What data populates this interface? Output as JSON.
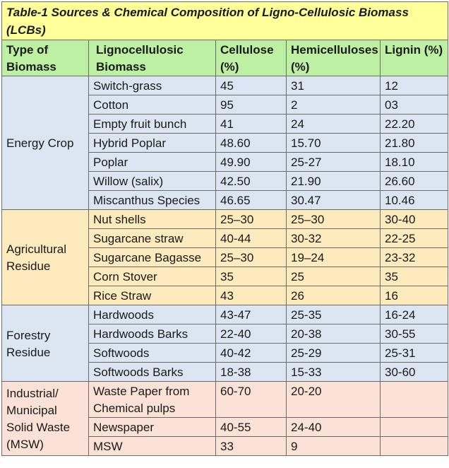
{
  "table": {
    "title": "Table-1 Sources & Chemical Composition of Ligno-Cellulosic Biomass (LCBs)",
    "headers": [
      "Type of Biomass",
      "Lignocellulosic Biomass",
      "Cellulose (%)",
      "Hemicelluloses (%)",
      "Lignin (%)"
    ],
    "groups": [
      {
        "type": "Energy Crop",
        "rows": [
          {
            "name": "Switch-grass",
            "cellulose": "45",
            "hemicellulose": "31",
            "lignin": "12"
          },
          {
            "name": "Cotton",
            "cellulose": "95",
            "hemicellulose": "2",
            "lignin": "03"
          },
          {
            "name": "Empty fruit bunch",
            "cellulose": "41",
            "hemicellulose": "24",
            "lignin": "22.20"
          },
          {
            "name": "Hybrid Poplar",
            "cellulose": "48.60",
            "hemicellulose": "15.70",
            "lignin": "21.80"
          },
          {
            "name": "Poplar",
            "cellulose": "49.90",
            "hemicellulose": "25-27",
            "lignin": "18.10"
          },
          {
            "name": "Willow (salix)",
            "cellulose": "42.50",
            "hemicellulose": "21.90",
            "lignin": "26.60"
          },
          {
            "name": "Miscanthus Species",
            "cellulose": "46.65",
            "hemicellulose": "30.47",
            "lignin": "10.46"
          }
        ]
      },
      {
        "type": "Agricultural Residue",
        "rows": [
          {
            "name": "Nut shells",
            "cellulose": "25–30",
            "hemicellulose": "25–30",
            "lignin": "30-40"
          },
          {
            "name": "Sugarcane straw",
            "cellulose": "40-44",
            "hemicellulose": "30-32",
            "lignin": "22-25"
          },
          {
            "name": "Sugarcane Bagasse",
            "cellulose": "25–30",
            "hemicellulose": "19–24",
            "lignin": "23-32"
          },
          {
            "name": "Corn Stover",
            "cellulose": "35",
            "hemicellulose": "25",
            "lignin": "35"
          },
          {
            "name": "Rice Straw",
            "cellulose": "43",
            "hemicellulose": "26",
            "lignin": "16"
          }
        ]
      },
      {
        "type": "Forestry Residue",
        "rows": [
          {
            "name": "Hardwoods",
            "cellulose": "43-47",
            "hemicellulose": "25-35",
            "lignin": "16-24"
          },
          {
            "name": "Hardwoods Barks",
            "cellulose": "22-40",
            "hemicellulose": "20-38",
            "lignin": "30-55"
          },
          {
            "name": "Softwoods",
            "cellulose": "40-42",
            "hemicellulose": "25-29",
            "lignin": "25-31"
          },
          {
            "name": "Softwoods Barks",
            "cellulose": "18-38",
            "hemicellulose": "15-33",
            "lignin": "30-60"
          }
        ]
      },
      {
        "type": "Industrial/ Municipal Solid Waste (MSW)",
        "rows": [
          {
            "name": "Waste Paper from Chemical pulps",
            "cellulose": "60-70",
            "hemicellulose": "20-20",
            "lignin": ""
          },
          {
            "name": "Newspaper",
            "cellulose": "40-55",
            "hemicellulose": "24-40",
            "lignin": ""
          },
          {
            "name": "MSW",
            "cellulose": "33",
            "hemicellulose": "9",
            "lignin": ""
          }
        ]
      }
    ]
  }
}
